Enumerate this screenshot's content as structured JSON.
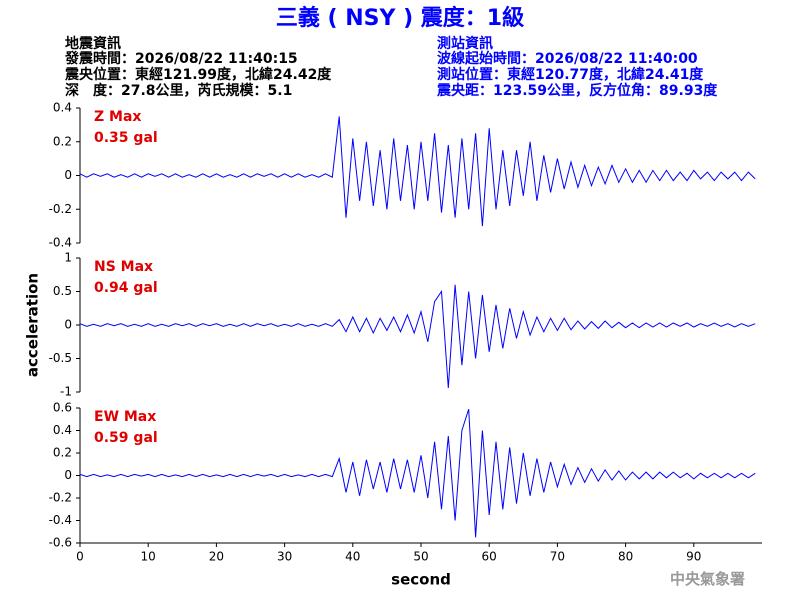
{
  "header": {
    "title": "三義 ( NSY ) 震度：1級",
    "left": [
      "地震資訊",
      "發震時間：2026/08/22 11:40:15",
      "震央位置：東經121.99度，北緯24.42度",
      "深　度：27.8公里，芮氏規模：5.1"
    ],
    "right": [
      "測站資訊",
      "波線起始時間：2026/08/22 11:40:00",
      "測站位置：東經120.77度，北緯24.41度",
      "震央距：123.59公里，反方位角：89.93度"
    ]
  },
  "ylabel": "acceleration",
  "footer": "中央氣象署",
  "chart_data": [
    {
      "type": "line",
      "annotations": [
        "Z Max",
        "0.35 gal"
      ],
      "xlim": [
        0,
        100
      ],
      "ylim": [
        -0.4,
        0.4
      ],
      "yticks": [
        -0.4,
        -0.2,
        0,
        0.2,
        0.4
      ],
      "x": [
        0,
        1,
        2,
        3,
        4,
        5,
        6,
        7,
        8,
        9,
        10,
        11,
        12,
        13,
        14,
        15,
        16,
        17,
        18,
        19,
        20,
        21,
        22,
        23,
        24,
        25,
        26,
        27,
        28,
        29,
        30,
        31,
        32,
        33,
        34,
        35,
        36,
        37,
        38,
        39,
        40,
        41,
        42,
        43,
        44,
        45,
        46,
        47,
        48,
        49,
        50,
        51,
        52,
        53,
        54,
        55,
        56,
        57,
        58,
        59,
        60,
        61,
        62,
        63,
        64,
        65,
        66,
        67,
        68,
        69,
        70,
        71,
        72,
        73,
        74,
        75,
        76,
        77,
        78,
        79,
        80,
        81,
        82,
        83,
        84,
        85,
        86,
        87,
        88,
        89,
        90,
        91,
        92,
        93,
        94,
        95,
        96,
        97,
        98,
        99
      ],
      "series": [
        {
          "color": "#0000ff",
          "values": [
            0.01,
            -0.01,
            0.01,
            -0.005,
            0.01,
            -0.01,
            0.005,
            -0.01,
            0.01,
            -0.01,
            0.01,
            -0.005,
            0.01,
            -0.01,
            0.01,
            -0.01,
            0.005,
            -0.01,
            0.01,
            -0.01,
            0.01,
            -0.01,
            0.005,
            -0.01,
            0.01,
            -0.01,
            0.01,
            -0.005,
            0.01,
            -0.01,
            0.01,
            -0.01,
            0.01,
            -0.01,
            0.005,
            -0.01,
            0.01,
            -0.01,
            0.35,
            -0.25,
            0.22,
            -0.15,
            0.2,
            -0.18,
            0.15,
            -0.2,
            0.22,
            -0.15,
            0.18,
            -0.2,
            0.2,
            -0.15,
            0.25,
            -0.22,
            0.18,
            -0.25,
            0.22,
            -0.2,
            0.25,
            -0.3,
            0.28,
            -0.2,
            0.15,
            -0.18,
            0.15,
            -0.12,
            0.2,
            -0.15,
            0.12,
            -0.1,
            0.1,
            -0.08,
            0.08,
            -0.07,
            0.06,
            -0.06,
            0.05,
            -0.05,
            0.06,
            -0.04,
            0.04,
            -0.04,
            0.03,
            -0.04,
            0.03,
            -0.03,
            0.03,
            -0.03,
            0.02,
            -0.03,
            0.03,
            -0.02,
            0.02,
            -0.03,
            0.02,
            -0.02,
            0.02,
            -0.03,
            0.02,
            -0.02
          ]
        }
      ]
    },
    {
      "type": "line",
      "annotations": [
        "NS Max",
        "0.94 gal"
      ],
      "xlim": [
        0,
        100
      ],
      "ylim": [
        -1,
        1
      ],
      "yticks": [
        -1,
        -0.5,
        0,
        0.5,
        1
      ],
      "x": [
        0,
        1,
        2,
        3,
        4,
        5,
        6,
        7,
        8,
        9,
        10,
        11,
        12,
        13,
        14,
        15,
        16,
        17,
        18,
        19,
        20,
        21,
        22,
        23,
        24,
        25,
        26,
        27,
        28,
        29,
        30,
        31,
        32,
        33,
        34,
        35,
        36,
        37,
        38,
        39,
        40,
        41,
        42,
        43,
        44,
        45,
        46,
        47,
        48,
        49,
        50,
        51,
        52,
        53,
        54,
        55,
        56,
        57,
        58,
        59,
        60,
        61,
        62,
        63,
        64,
        65,
        66,
        67,
        68,
        69,
        70,
        71,
        72,
        73,
        74,
        75,
        76,
        77,
        78,
        79,
        80,
        81,
        82,
        83,
        84,
        85,
        86,
        87,
        88,
        89,
        90,
        91,
        92,
        93,
        94,
        95,
        96,
        97,
        98,
        99
      ],
      "series": [
        {
          "color": "#0000ff",
          "values": [
            0.02,
            -0.02,
            0.01,
            -0.02,
            0.02,
            -0.01,
            0.02,
            -0.02,
            0.01,
            -0.02,
            0.02,
            -0.02,
            0.01,
            -0.02,
            0.02,
            -0.01,
            0.02,
            -0.02,
            0.02,
            -0.01,
            0.02,
            -0.02,
            0.01,
            -0.02,
            0.02,
            -0.02,
            0.02,
            -0.01,
            0.02,
            -0.02,
            0.01,
            -0.02,
            0.02,
            -0.02,
            0.01,
            -0.02,
            0.02,
            -0.02,
            0.08,
            -0.1,
            0.12,
            -0.1,
            0.1,
            -0.12,
            0.1,
            -0.08,
            0.12,
            -0.1,
            0.15,
            -0.12,
            0.2,
            -0.25,
            0.35,
            0.5,
            -0.94,
            0.6,
            -0.6,
            0.5,
            -0.5,
            0.45,
            -0.4,
            0.3,
            -0.35,
            0.25,
            -0.2,
            0.2,
            -0.15,
            0.12,
            -0.1,
            0.1,
            -0.08,
            0.1,
            -0.07,
            0.06,
            -0.06,
            0.05,
            -0.05,
            0.06,
            -0.04,
            0.04,
            -0.04,
            0.03,
            -0.04,
            0.03,
            -0.03,
            0.03,
            -0.03,
            0.03,
            -0.02,
            0.03,
            -0.03,
            0.02,
            -0.02,
            0.03,
            -0.02,
            0.02,
            -0.03,
            0.02,
            -0.02,
            0.02
          ]
        }
      ]
    },
    {
      "type": "line",
      "annotations": [
        "EW Max",
        "0.59 gal"
      ],
      "xlabel": "second",
      "xlim": [
        0,
        100
      ],
      "xticks": [
        0,
        10,
        20,
        30,
        40,
        50,
        60,
        70,
        80,
        90
      ],
      "ylim": [
        -0.6,
        0.6
      ],
      "yticks": [
        -0.6,
        -0.4,
        -0.2,
        0,
        0.2,
        0.4,
        0.6
      ],
      "x": [
        0,
        1,
        2,
        3,
        4,
        5,
        6,
        7,
        8,
        9,
        10,
        11,
        12,
        13,
        14,
        15,
        16,
        17,
        18,
        19,
        20,
        21,
        22,
        23,
        24,
        25,
        26,
        27,
        28,
        29,
        30,
        31,
        32,
        33,
        34,
        35,
        36,
        37,
        38,
        39,
        40,
        41,
        42,
        43,
        44,
        45,
        46,
        47,
        48,
        49,
        50,
        51,
        52,
        53,
        54,
        55,
        56,
        57,
        58,
        59,
        60,
        61,
        62,
        63,
        64,
        65,
        66,
        67,
        68,
        69,
        70,
        71,
        72,
        73,
        74,
        75,
        76,
        77,
        78,
        79,
        80,
        81,
        82,
        83,
        84,
        85,
        86,
        87,
        88,
        89,
        90,
        91,
        92,
        93,
        94,
        95,
        96,
        97,
        98,
        99
      ],
      "series": [
        {
          "color": "#0000ff",
          "values": [
            0.01,
            -0.01,
            0.01,
            -0.01,
            0.005,
            -0.01,
            0.01,
            -0.01,
            0.01,
            -0.005,
            0.01,
            -0.01,
            0.01,
            -0.01,
            0.005,
            -0.01,
            0.01,
            -0.01,
            0.01,
            -0.01,
            0.005,
            -0.01,
            0.01,
            -0.01,
            0.01,
            -0.01,
            0.01,
            -0.005,
            0.01,
            -0.01,
            0.01,
            -0.01,
            0.005,
            -0.01,
            0.01,
            -0.01,
            0.01,
            -0.01,
            0.15,
            -0.15,
            0.12,
            -0.18,
            0.14,
            -0.12,
            0.12,
            -0.15,
            0.15,
            -0.12,
            0.14,
            -0.15,
            0.18,
            -0.2,
            0.3,
            -0.3,
            0.35,
            -0.4,
            0.4,
            0.59,
            -0.55,
            0.4,
            -0.35,
            0.3,
            -0.3,
            0.25,
            -0.25,
            0.2,
            -0.18,
            0.15,
            -0.15,
            0.12,
            -0.1,
            0.1,
            -0.08,
            0.07,
            -0.06,
            0.06,
            -0.05,
            0.05,
            -0.04,
            0.04,
            -0.04,
            0.03,
            -0.03,
            0.03,
            -0.03,
            0.03,
            -0.02,
            0.03,
            -0.02,
            0.02,
            -0.03,
            0.02,
            -0.02,
            0.02,
            -0.02,
            0.02,
            -0.02,
            0.02,
            -0.02,
            0.02
          ]
        }
      ]
    }
  ]
}
